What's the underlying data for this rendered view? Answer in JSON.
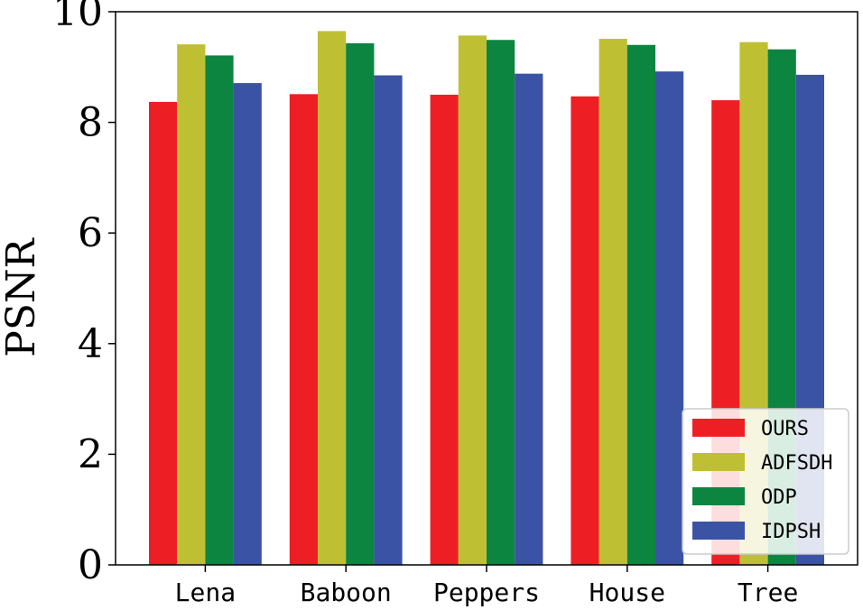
{
  "chart_data": {
    "type": "bar",
    "title": "",
    "xlabel": "",
    "ylabel": "PSNR",
    "ylim": [
      0,
      10
    ],
    "yticks": [
      "0",
      "2",
      "4",
      "6",
      "8",
      "10"
    ],
    "categories": [
      "Lena",
      "Baboon",
      "Peppers",
      "House",
      "Tree"
    ],
    "series": [
      {
        "name": "OURS",
        "color": "#ee1f24",
        "values": [
          8.37,
          8.51,
          8.5,
          8.47,
          8.4
        ]
      },
      {
        "name": "ADFSDH",
        "color": "#bfbf33",
        "values": [
          9.41,
          9.65,
          9.57,
          9.51,
          9.45
        ]
      },
      {
        "name": "ODP",
        "color": "#0c8541",
        "values": [
          9.21,
          9.43,
          9.49,
          9.4,
          9.32
        ]
      },
      {
        "name": "IDPSH",
        "color": "#3a53a4",
        "values": [
          8.71,
          8.85,
          8.88,
          8.92,
          8.86
        ]
      }
    ],
    "legend_position": "lower-right",
    "grid": false
  }
}
